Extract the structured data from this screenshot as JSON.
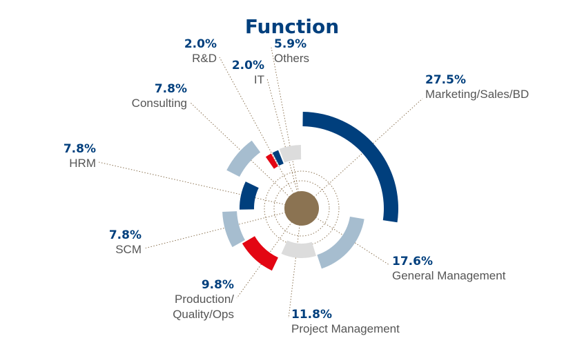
{
  "chart_data": {
    "type": "pie",
    "title": "Function",
    "slices": [
      {
        "label": "Marketing/Sales/BD",
        "value": 27.5,
        "display": "27.5%",
        "color": "#003f7d"
      },
      {
        "label": "General Management",
        "value": 17.6,
        "display": "17.6%",
        "color": "#a6bdcf"
      },
      {
        "label": "Project Management",
        "value": 11.8,
        "display": "11.8%",
        "color": "#dcdcdc"
      },
      {
        "label_lines": [
          "Production/",
          "Quality/Ops"
        ],
        "value": 9.8,
        "display": "9.8%",
        "color": "#e30613"
      },
      {
        "label": "SCM",
        "value": 7.8,
        "display": "7.8%",
        "color": "#a6bdcf"
      },
      {
        "label": "HRM",
        "value": 7.8,
        "display": "7.8%",
        "color": "#003f7d"
      },
      {
        "label": "Consulting",
        "value": 7.8,
        "display": "7.8%",
        "color": "#a6bdcf"
      },
      {
        "label": "R&D",
        "value": 2.0,
        "display": "2.0%",
        "color": "#e30613"
      },
      {
        "label": "IT",
        "value": 2.0,
        "display": "2.0%",
        "color": "#003f7d"
      },
      {
        "label": "Others",
        "value": 5.9,
        "display": "5.9%",
        "color": "#dcdcdc"
      }
    ],
    "colors": {
      "value_text": "#003f7d",
      "label_text": "#555555",
      "title_text": "#003f7d",
      "center": "#8b7352",
      "guide": "#8b7352"
    }
  }
}
